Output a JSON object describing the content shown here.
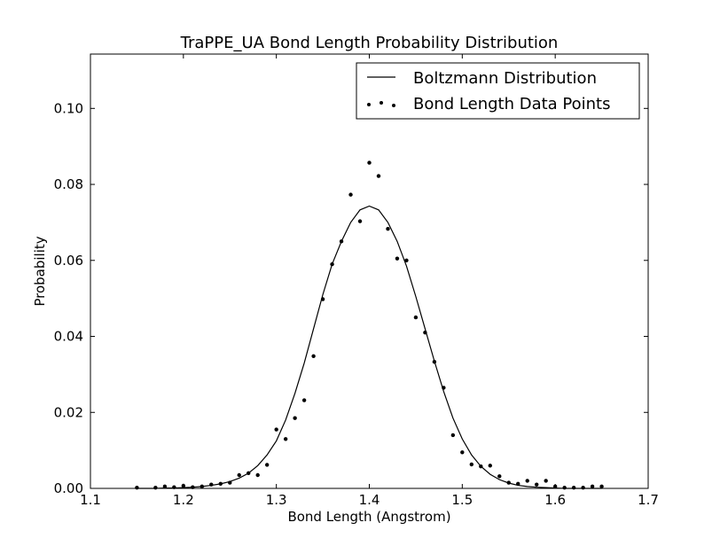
{
  "chart_data": {
    "type": "line",
    "title": "TraPPE_UA Bond Length Probability Distribution",
    "xlabel": "Bond Length (Angstrom)",
    "ylabel": "Probability",
    "xlim": [
      1.1,
      1.7
    ],
    "ylim": [
      0.0,
      0.1143
    ],
    "xticks": [
      1.1,
      1.2,
      1.3,
      1.4,
      1.5,
      1.6,
      1.7
    ],
    "xtick_labels": [
      "1.1",
      "1.2",
      "1.3",
      "1.4",
      "1.5",
      "1.6",
      "1.7"
    ],
    "yticks": [
      0.0,
      0.02,
      0.04,
      0.06,
      0.08,
      0.1
    ],
    "ytick_labels": [
      "0.00",
      "0.02",
      "0.04",
      "0.06",
      "0.08",
      "0.10"
    ],
    "grid": false,
    "legend_position": "top-right",
    "series": [
      {
        "name": "Boltzmann Distribution",
        "style": "line",
        "color": "#000000",
        "x": [
          1.15,
          1.16,
          1.17,
          1.18,
          1.19,
          1.2,
          1.21,
          1.22,
          1.23,
          1.24,
          1.25,
          1.26,
          1.27,
          1.28,
          1.29,
          1.3,
          1.31,
          1.32,
          1.33,
          1.34,
          1.35,
          1.36,
          1.37,
          1.38,
          1.39,
          1.4,
          1.41,
          1.42,
          1.43,
          1.44,
          1.45,
          1.46,
          1.47,
          1.48,
          1.49,
          1.5,
          1.51,
          1.52,
          1.53,
          1.54,
          1.55,
          1.56,
          1.57,
          1.58,
          1.59,
          1.6,
          1.61,
          1.62,
          1.63,
          1.64,
          1.65
        ],
        "y": [
          0.0,
          0.0,
          0.0,
          0.0001,
          0.0001,
          0.0002,
          0.0003,
          0.0005,
          0.0008,
          0.0012,
          0.0018,
          0.0027,
          0.004,
          0.006,
          0.0088,
          0.0125,
          0.018,
          0.025,
          0.033,
          0.042,
          0.051,
          0.059,
          0.065,
          0.07,
          0.0733,
          0.0743,
          0.0733,
          0.07,
          0.065,
          0.0585,
          0.0505,
          0.042,
          0.0335,
          0.0255,
          0.0185,
          0.013,
          0.0088,
          0.0058,
          0.0037,
          0.0023,
          0.0014,
          0.0008,
          0.0005,
          0.0003,
          0.0002,
          0.0001,
          0.0,
          0.0,
          0.0,
          0.0,
          0.0
        ]
      },
      {
        "name": "Bond Length Data Points",
        "style": "points",
        "color": "#000000",
        "x": [
          1.15,
          1.17,
          1.18,
          1.19,
          1.2,
          1.21,
          1.22,
          1.23,
          1.24,
          1.25,
          1.26,
          1.27,
          1.28,
          1.29,
          1.3,
          1.31,
          1.32,
          1.33,
          1.34,
          1.35,
          1.36,
          1.37,
          1.38,
          1.39,
          1.4,
          1.41,
          1.42,
          1.43,
          1.44,
          1.45,
          1.46,
          1.47,
          1.48,
          1.49,
          1.5,
          1.51,
          1.52,
          1.53,
          1.54,
          1.55,
          1.56,
          1.57,
          1.58,
          1.59,
          1.6,
          1.61,
          1.62,
          1.63,
          1.64,
          1.65
        ],
        "y": [
          0.0002,
          0.0002,
          0.0005,
          0.0003,
          0.0007,
          0.0003,
          0.0005,
          0.001,
          0.0012,
          0.0015,
          0.0035,
          0.004,
          0.0035,
          0.0062,
          0.0155,
          0.013,
          0.0185,
          0.0232,
          0.0348,
          0.0498,
          0.059,
          0.065,
          0.0773,
          0.0703,
          0.0857,
          0.0822,
          0.0683,
          0.0605,
          0.06,
          0.045,
          0.041,
          0.0333,
          0.0265,
          0.014,
          0.0095,
          0.0063,
          0.0058,
          0.006,
          0.0032,
          0.0015,
          0.0012,
          0.002,
          0.001,
          0.002,
          0.0005,
          0.0002,
          0.0002,
          0.0002,
          0.0005,
          0.0005
        ]
      }
    ]
  }
}
